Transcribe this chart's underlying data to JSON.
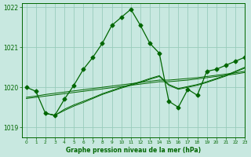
{
  "background_color": "#c8e8e0",
  "grid_color": "#99ccbb",
  "line_color": "#006600",
  "title": "Graphe pression niveau de la mer (hPa)",
  "xlim": [
    -0.5,
    23
  ],
  "ylim": [
    1018.75,
    1022.1
  ],
  "yticks": [
    1019,
    1020,
    1021,
    1022
  ],
  "xticks": [
    0,
    1,
    2,
    3,
    4,
    5,
    6,
    7,
    8,
    9,
    10,
    11,
    12,
    13,
    14,
    15,
    16,
    17,
    18,
    19,
    20,
    21,
    22,
    23
  ],
  "main_x": [
    0,
    1,
    2,
    3,
    4,
    5,
    6,
    7,
    8,
    9,
    10,
    11,
    12,
    13,
    14,
    15,
    16,
    17,
    18,
    19,
    20,
    21,
    22,
    23
  ],
  "main_y": [
    1020.0,
    1019.9,
    1019.35,
    1019.3,
    1019.7,
    1020.05,
    1020.45,
    1020.75,
    1021.1,
    1021.55,
    1021.75,
    1021.95,
    1021.55,
    1021.1,
    1020.85,
    1019.65,
    1019.5,
    1019.95,
    1019.8,
    1020.4,
    1020.45,
    1020.55,
    1020.65,
    1020.75
  ],
  "trend1_x": [
    2,
    3,
    4,
    5,
    6,
    7,
    8,
    9,
    10,
    11,
    12,
    13,
    14,
    15,
    16,
    17,
    18,
    19,
    20,
    21,
    22,
    23
  ],
  "trend1_y": [
    1019.35,
    1019.3,
    1019.42,
    1019.53,
    1019.62,
    1019.72,
    1019.82,
    1019.9,
    1019.98,
    1020.05,
    1020.12,
    1020.2,
    1020.27,
    1020.05,
    1019.95,
    1020.0,
    1020.05,
    1020.12,
    1020.2,
    1020.28,
    1020.38,
    1020.48
  ],
  "trend2_x": [
    2,
    3,
    4,
    5,
    6,
    7,
    8,
    9,
    10,
    11,
    12,
    13,
    14,
    15,
    16,
    17,
    18,
    19,
    20,
    21,
    22,
    23
  ],
  "trend2_y": [
    1019.35,
    1019.3,
    1019.45,
    1019.56,
    1019.65,
    1019.74,
    1019.84,
    1019.92,
    1020.0,
    1020.07,
    1020.14,
    1020.22,
    1020.29,
    1020.07,
    1019.97,
    1020.02,
    1020.07,
    1020.14,
    1020.22,
    1020.3,
    1020.4,
    1020.5
  ],
  "trend3_x": [
    0,
    1,
    2,
    3,
    4,
    5,
    6,
    7,
    8,
    9,
    10,
    11,
    12,
    13,
    14,
    15,
    16,
    17,
    18,
    19,
    20,
    21,
    22,
    23
  ],
  "trend3_y": [
    1019.75,
    1019.78,
    1019.82,
    1019.85,
    1019.88,
    1019.91,
    1019.94,
    1019.97,
    1020.0,
    1020.03,
    1020.06,
    1020.09,
    1020.12,
    1020.15,
    1020.18,
    1020.18,
    1020.2,
    1020.22,
    1020.24,
    1020.27,
    1020.3,
    1020.33,
    1020.36,
    1020.4
  ],
  "trend4_x": [
    0,
    1,
    2,
    3,
    4,
    5,
    6,
    7,
    8,
    9,
    10,
    11,
    12,
    13,
    14,
    15,
    16,
    17,
    18,
    19,
    20,
    21,
    22,
    23
  ],
  "trend4_y": [
    1019.72,
    1019.75,
    1019.78,
    1019.81,
    1019.84,
    1019.87,
    1019.9,
    1019.93,
    1019.96,
    1019.99,
    1020.02,
    1020.05,
    1020.08,
    1020.11,
    1020.14,
    1020.14,
    1020.16,
    1020.18,
    1020.21,
    1020.24,
    1020.27,
    1020.3,
    1020.33,
    1020.37
  ]
}
